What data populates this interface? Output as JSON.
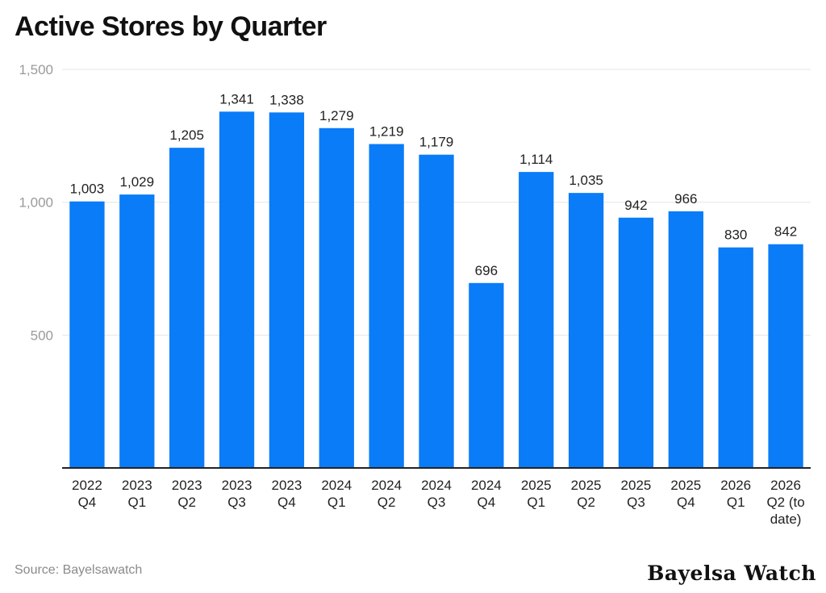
{
  "chart_data": {
    "type": "bar",
    "title": "Active Stores by Quarter",
    "categories": [
      [
        "2022",
        "Q4"
      ],
      [
        "2023",
        "Q1"
      ],
      [
        "2023",
        "Q2"
      ],
      [
        "2023",
        "Q3"
      ],
      [
        "2023",
        "Q4"
      ],
      [
        "2024",
        "Q1"
      ],
      [
        "2024",
        "Q2"
      ],
      [
        "2024",
        "Q3"
      ],
      [
        "2024",
        "Q4"
      ],
      [
        "2025",
        "Q1"
      ],
      [
        "2025",
        "Q2"
      ],
      [
        "2025",
        "Q3"
      ],
      [
        "2025",
        "Q4"
      ],
      [
        "2026",
        "Q1"
      ],
      [
        "2026",
        "Q2 (to",
        "date)"
      ]
    ],
    "values": [
      1003,
      1029,
      1205,
      1341,
      1338,
      1279,
      1219,
      1179,
      696,
      1114,
      1035,
      942,
      966,
      830,
      842
    ],
    "data_labels": [
      "1,003",
      "1,029",
      "1,205",
      "1,341",
      "1,338",
      "1,279",
      "1,219",
      "1,179",
      "696",
      "1,114",
      "1,035",
      "942",
      "966",
      "830",
      "842"
    ],
    "ylim": [
      0,
      1500
    ],
    "yticks": [
      500,
      1000,
      1500
    ],
    "ytick_labels": [
      "500",
      "1,000",
      "1,500"
    ],
    "grid": true,
    "bar_color": "#0a7cf7"
  },
  "source": "Source: Bayelsawatch",
  "brand": "Bayelsa Watch"
}
